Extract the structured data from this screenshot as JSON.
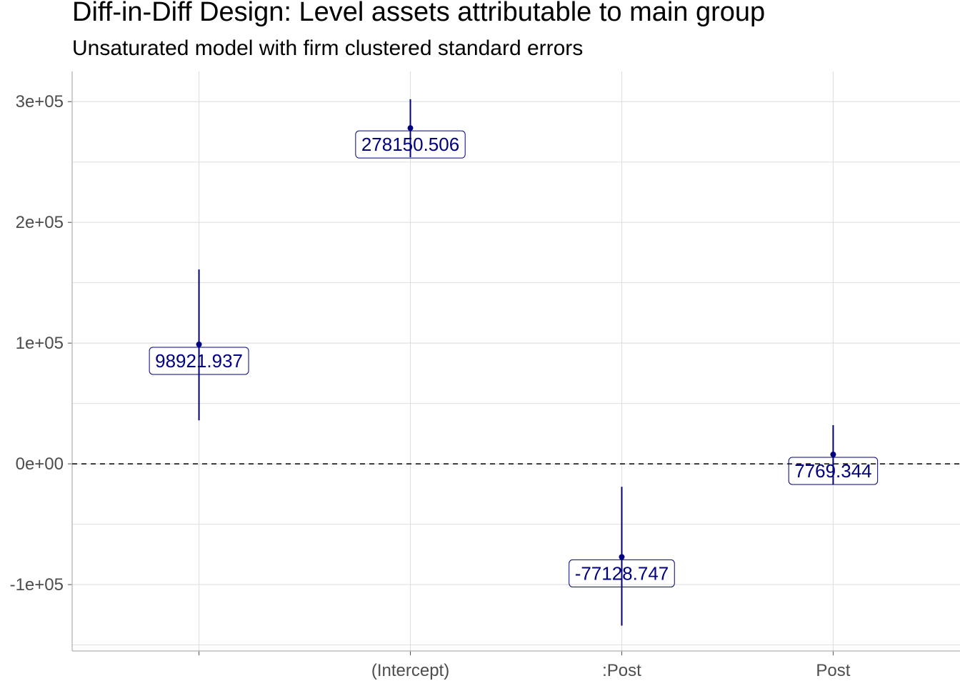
{
  "chart_data": {
    "type": "scatter",
    "title": "Diff-in-Diff Design: Level assets attributable to main group",
    "subtitle": "Unsaturated model with firm clustered standard errors",
    "xlabel": "",
    "ylabel": "",
    "categories": [
      "",
      "(Intercept)",
      ":Post",
      "Post"
    ],
    "points": [
      {
        "category": "",
        "estimate": 98921.937,
        "lower": 36000,
        "upper": 161000,
        "label": "98921.937"
      },
      {
        "category": "(Intercept)",
        "estimate": 278150.506,
        "lower": 254000,
        "upper": 302000,
        "label": "278150.506"
      },
      {
        "category": ":Post",
        "estimate": -77128.747,
        "lower": -134000,
        "upper": -19000,
        "label": "-77128.747"
      },
      {
        "category": "Post",
        "estimate": 7769.344,
        "lower": -17000,
        "upper": 32000,
        "label": "7769.344"
      }
    ],
    "y_ticks": [
      {
        "value": -100000,
        "label": "-1e+05"
      },
      {
        "value": 0,
        "label": "0e+00"
      },
      {
        "value": 100000,
        "label": "1e+05"
      },
      {
        "value": 200000,
        "label": "2e+05"
      },
      {
        "value": 300000,
        "label": "3e+05"
      }
    ],
    "ylim": [
      -155000,
      325000
    ],
    "reference_line": {
      "y": 0,
      "style": "dashed"
    },
    "grid": true,
    "legend": "none",
    "colors": {
      "series": "#00007f",
      "grid": "#e0e0e0",
      "axis": "#bdbdbd",
      "reference": "#000000",
      "label_box": "#ffffff"
    }
  }
}
